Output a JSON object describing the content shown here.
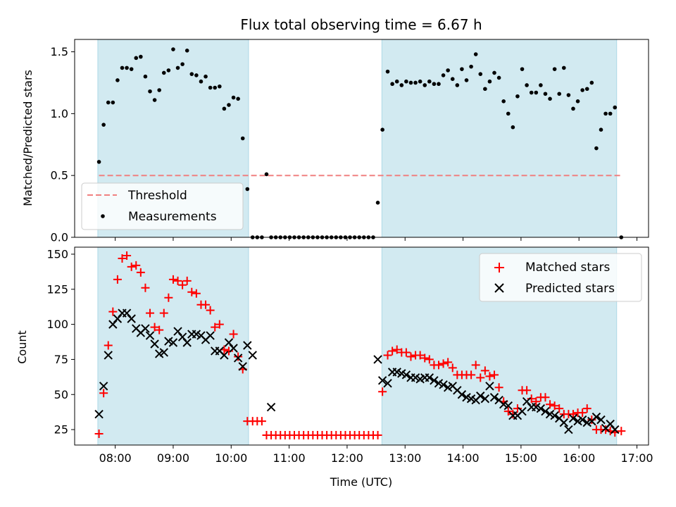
{
  "chart_data": {
    "type": "scatter",
    "title": "Flux total observing time = 6.67 h",
    "colors": {
      "shade": "#add8e6",
      "threshold": "#f08080",
      "measurements": "#000000",
      "matched": "#ff0000",
      "predicted": "#000000"
    },
    "x_ticks": [
      {
        "t": 8,
        "label": "08:00"
      },
      {
        "t": 9,
        "label": "09:00"
      },
      {
        "t": 10,
        "label": "10:00"
      },
      {
        "t": 11,
        "label": "11:00"
      },
      {
        "t": 12,
        "label": "12:00"
      },
      {
        "t": 13,
        "label": "13:00"
      },
      {
        "t": 14,
        "label": "14:00"
      },
      {
        "t": 15,
        "label": "15:00"
      },
      {
        "t": 16,
        "label": "16:00"
      },
      {
        "t": 17,
        "label": "17:00"
      }
    ],
    "xlabel": "Time (UTC)",
    "xlim": [
      7.3,
      17.2
    ],
    "shaded_intervals": [
      [
        7.7,
        10.3
      ],
      [
        12.6,
        16.65
      ]
    ],
    "top": {
      "ylabel": "Matched/Predicted stars",
      "ylim": [
        0,
        1.6
      ],
      "yticks": [
        "0.0",
        "0.5",
        "1.0",
        "1.5"
      ],
      "threshold": 0.5,
      "legend": [
        {
          "label": "Threshold",
          "marker": "dash",
          "color": "#f08080"
        },
        {
          "label": "Measurements",
          "marker": "dot",
          "color": "#000000"
        }
      ],
      "measurements": {
        "x": [
          7.72,
          7.8,
          7.88,
          7.96,
          8.04,
          8.12,
          8.2,
          8.28,
          8.36,
          8.44,
          8.52,
          8.6,
          8.68,
          8.76,
          8.84,
          8.92,
          9.0,
          9.08,
          9.16,
          9.24,
          9.32,
          9.4,
          9.48,
          9.56,
          9.64,
          9.72,
          9.8,
          9.88,
          9.96,
          10.04,
          10.12,
          10.2,
          10.28,
          10.37,
          10.45,
          10.53,
          10.61,
          10.69,
          10.77,
          10.85,
          10.93,
          11.01,
          11.09,
          11.17,
          11.25,
          11.33,
          11.41,
          11.49,
          11.57,
          11.65,
          11.73,
          11.81,
          11.89,
          11.97,
          12.05,
          12.13,
          12.21,
          12.29,
          12.37,
          12.45,
          12.53,
          12.61,
          12.7,
          12.78,
          12.86,
          12.94,
          13.02,
          13.1,
          13.18,
          13.26,
          13.34,
          13.42,
          13.5,
          13.58,
          13.66,
          13.74,
          13.82,
          13.9,
          13.98,
          14.06,
          14.14,
          14.22,
          14.3,
          14.38,
          14.46,
          14.54,
          14.62,
          14.7,
          14.78,
          14.86,
          14.94,
          15.02,
          15.1,
          15.18,
          15.26,
          15.34,
          15.42,
          15.5,
          15.58,
          15.66,
          15.74,
          15.82,
          15.9,
          15.98,
          16.06,
          16.14,
          16.22,
          16.3,
          16.38,
          16.46,
          16.54,
          16.62,
          16.73
        ],
        "y": [
          0.61,
          0.91,
          1.09,
          1.09,
          1.27,
          1.37,
          1.37,
          1.36,
          1.45,
          1.46,
          1.3,
          1.18,
          1.11,
          1.19,
          1.33,
          1.35,
          1.52,
          1.37,
          1.4,
          1.51,
          1.32,
          1.31,
          1.26,
          1.3,
          1.21,
          1.21,
          1.22,
          1.04,
          1.07,
          1.13,
          1.12,
          0.8,
          0.39,
          0.0,
          0.0,
          0.0,
          0.51,
          0.0,
          0.0,
          0.0,
          0.0,
          0.0,
          0.0,
          0.0,
          0.0,
          0.0,
          0.0,
          0.0,
          0.0,
          0.0,
          0.0,
          0.0,
          0.0,
          0.0,
          0.0,
          0.0,
          0.0,
          0.0,
          0.0,
          0.0,
          0.28,
          0.87,
          1.34,
          1.24,
          1.26,
          1.23,
          1.26,
          1.25,
          1.25,
          1.26,
          1.23,
          1.26,
          1.24,
          1.24,
          1.31,
          1.35,
          1.28,
          1.23,
          1.36,
          1.27,
          1.38,
          1.48,
          1.32,
          1.2,
          1.26,
          1.33,
          1.29,
          1.1,
          1.0,
          0.89,
          1.14,
          1.36,
          1.23,
          1.17,
          1.17,
          1.23,
          1.16,
          1.12,
          1.36,
          1.16,
          1.37,
          1.15,
          1.04,
          1.1,
          1.19,
          1.2,
          1.25,
          0.72,
          0.87,
          1.0,
          1.0,
          1.05,
          0.0
        ]
      }
    },
    "bottom": {
      "ylabel": "Count",
      "ylim": [
        14,
        155
      ],
      "yticks": [
        "25",
        "50",
        "75",
        "100",
        "125",
        "150"
      ],
      "legend": [
        {
          "label": "Matched stars",
          "marker": "plus",
          "color": "#ff0000"
        },
        {
          "label": "Predicted stars",
          "marker": "x",
          "color": "#000000"
        }
      ],
      "matched": {
        "x": [
          7.72,
          7.8,
          7.88,
          7.96,
          8.04,
          8.12,
          8.2,
          8.28,
          8.36,
          8.44,
          8.52,
          8.6,
          8.68,
          8.76,
          8.84,
          8.92,
          9.0,
          9.08,
          9.16,
          9.24,
          9.32,
          9.4,
          9.48,
          9.56,
          9.64,
          9.72,
          9.8,
          9.88,
          9.96,
          10.04,
          10.12,
          10.2,
          10.28,
          10.37,
          10.45,
          10.53,
          10.61,
          10.69,
          10.77,
          10.85,
          10.93,
          11.01,
          11.09,
          11.17,
          11.25,
          11.33,
          11.41,
          11.49,
          11.57,
          11.65,
          11.73,
          11.81,
          11.89,
          11.97,
          12.05,
          12.13,
          12.21,
          12.29,
          12.37,
          12.45,
          12.53,
          12.61,
          12.7,
          12.78,
          12.86,
          12.94,
          13.02,
          13.1,
          13.18,
          13.26,
          13.34,
          13.42,
          13.5,
          13.58,
          13.66,
          13.74,
          13.82,
          13.9,
          13.98,
          14.06,
          14.14,
          14.22,
          14.3,
          14.38,
          14.46,
          14.54,
          14.62,
          14.7,
          14.78,
          14.86,
          14.94,
          15.02,
          15.1,
          15.18,
          15.26,
          15.34,
          15.42,
          15.5,
          15.58,
          15.66,
          15.74,
          15.82,
          15.9,
          15.98,
          16.06,
          16.14,
          16.22,
          16.3,
          16.38,
          16.46,
          16.54,
          16.62,
          16.73
        ],
        "y": [
          22,
          51,
          85,
          109,
          132,
          147,
          149,
          141,
          142,
          137,
          126,
          108,
          98,
          96,
          108,
          119,
          132,
          131,
          128,
          131,
          123,
          122,
          114,
          114,
          110,
          98,
          100,
          82,
          81,
          93,
          77,
          68,
          31,
          31,
          31,
          31,
          21,
          21,
          21,
          21,
          21,
          21,
          21,
          21,
          21,
          21,
          21,
          21,
          21,
          21,
          21,
          21,
          21,
          21,
          21,
          21,
          21,
          21,
          21,
          21,
          21,
          52,
          78,
          81,
          82,
          80,
          80,
          77,
          78,
          78,
          76,
          75,
          71,
          71,
          72,
          73,
          69,
          64,
          64,
          64,
          64,
          71,
          62,
          67,
          63,
          64,
          55,
          45,
          38,
          36,
          40,
          53,
          53,
          47,
          45,
          48,
          48,
          43,
          42,
          40,
          36,
          36,
          36,
          37,
          37,
          40,
          32,
          25,
          25,
          25,
          24,
          23,
          24
        ]
      },
      "predicted": {
        "x": [
          7.72,
          7.8,
          7.88,
          7.96,
          8.04,
          8.12,
          8.2,
          8.28,
          8.36,
          8.44,
          8.52,
          8.6,
          8.68,
          8.76,
          8.84,
          8.92,
          9.0,
          9.08,
          9.16,
          9.24,
          9.32,
          9.4,
          9.48,
          9.56,
          9.64,
          9.72,
          9.8,
          9.88,
          9.96,
          10.04,
          10.12,
          10.2,
          10.28,
          10.37,
          10.69,
          12.53,
          12.61,
          12.7,
          12.78,
          12.86,
          12.94,
          13.02,
          13.1,
          13.18,
          13.26,
          13.34,
          13.42,
          13.5,
          13.58,
          13.66,
          13.74,
          13.82,
          13.9,
          13.98,
          14.06,
          14.14,
          14.22,
          14.3,
          14.38,
          14.46,
          14.54,
          14.62,
          14.7,
          14.78,
          14.86,
          14.94,
          15.02,
          15.1,
          15.18,
          15.26,
          15.34,
          15.42,
          15.5,
          15.58,
          15.66,
          15.74,
          15.82,
          15.9,
          15.98,
          16.06,
          16.14,
          16.22,
          16.3,
          16.38,
          16.46,
          16.54,
          16.62
        ],
        "y": [
          36,
          56,
          78,
          100,
          104,
          108,
          108,
          104,
          97,
          94,
          97,
          92,
          86,
          79,
          80,
          88,
          87,
          95,
          91,
          87,
          93,
          93,
          92,
          89,
          92,
          81,
          81,
          78,
          87,
          83,
          76,
          70,
          85,
          78,
          41,
          75,
          60,
          58,
          66,
          66,
          65,
          64,
          62,
          62,
          61,
          62,
          62,
          60,
          58,
          57,
          55,
          56,
          53,
          50,
          48,
          47,
          46,
          49,
          47,
          56,
          48,
          46,
          43,
          42,
          35,
          35,
          38,
          45,
          41,
          41,
          40,
          38,
          36,
          35,
          33,
          30,
          25,
          33,
          31,
          32,
          30,
          31,
          34,
          32,
          26,
          29,
          25
        ]
      }
    }
  }
}
